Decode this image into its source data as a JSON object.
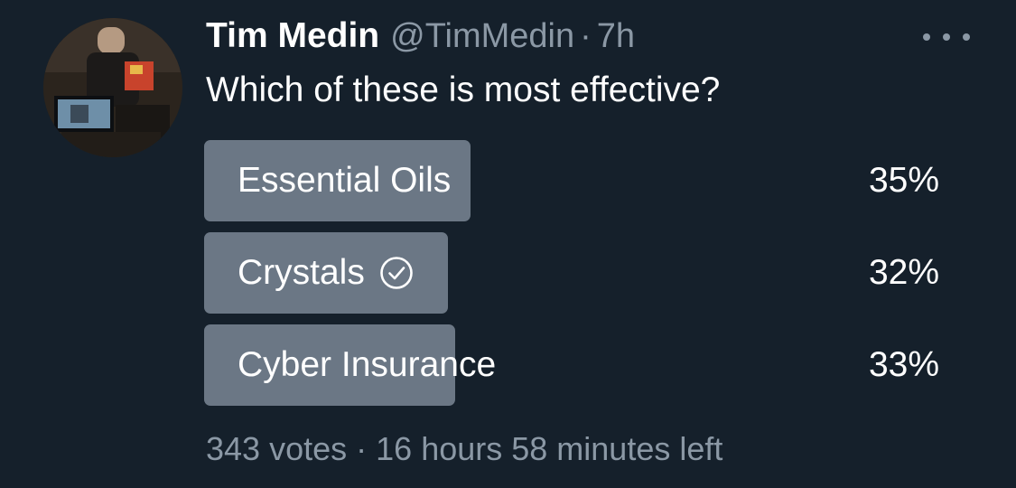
{
  "tweet": {
    "author": {
      "display_name": "Tim Medin",
      "handle": "@TimMedin",
      "separator": "·",
      "time": "7h"
    },
    "more_icon": "more-horizontal-icon",
    "text": "Which of these is most effective?",
    "poll": {
      "options": [
        {
          "label": "Essential Oils",
          "percent_label": "35%",
          "percent": 35,
          "selected": false
        },
        {
          "label": "Crystals",
          "percent_label": "32%",
          "percent": 32,
          "selected": true
        },
        {
          "label": "Cyber Insurance",
          "percent_label": "33%",
          "percent": 33,
          "selected": false
        }
      ],
      "selected_icon": "check-circle-icon",
      "footer": {
        "votes": "343 votes",
        "separator": "·",
        "time_left": "16 hours 58 minutes left"
      }
    },
    "colors": {
      "background": "#15202b",
      "bar": "#6b7785",
      "secondary_text": "#8b98a5",
      "primary_text": "#ffffff"
    }
  }
}
